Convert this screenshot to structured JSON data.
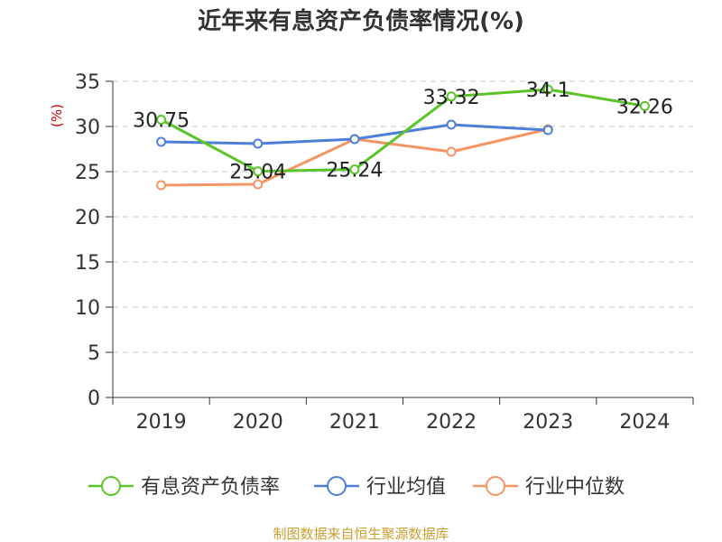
{
  "chart_data": {
    "type": "line",
    "title": "近年来有息资产负债率情况(%)",
    "ylabel": "(%)",
    "xlabel": "",
    "ylim": [
      0,
      35
    ],
    "yticks": [
      0,
      5,
      10,
      15,
      20,
      25,
      30,
      35
    ],
    "categories": [
      "2019",
      "2020",
      "2021",
      "2022",
      "2023",
      "2024"
    ],
    "grid": true,
    "legend_position": "bottom",
    "series": [
      {
        "name": "有息资产负债率",
        "color": "#5ac429",
        "values": [
          30.75,
          25.04,
          25.24,
          33.32,
          34.1,
          32.26
        ],
        "labels": [
          "30.75",
          "25.04",
          "25.24",
          "33.32",
          "34.1",
          "32.26"
        ]
      },
      {
        "name": "行业均值",
        "color": "#4e7fd8",
        "values": [
          28.3,
          28.1,
          28.6,
          30.2,
          29.6,
          null
        ]
      },
      {
        "name": "行业中位数",
        "color": "#f59464",
        "values": [
          23.5,
          23.6,
          28.6,
          27.2,
          29.7,
          null
        ]
      }
    ],
    "source": "制图数据来自恒生聚源数据库"
  }
}
